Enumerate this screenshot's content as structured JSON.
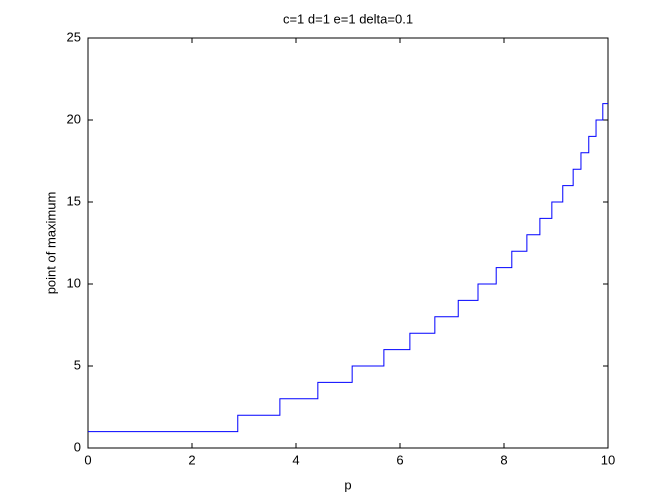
{
  "chart_data": {
    "type": "step",
    "title": "c=1 d=1 e=1 delta=0.1",
    "xlabel": "p",
    "ylabel": "point of maximum",
    "x": [
      0,
      2.88,
      3.69,
      4.42,
      5.08,
      5.69,
      6.19,
      6.67,
      7.12,
      7.5,
      7.85,
      8.15,
      8.44,
      8.69,
      8.92,
      9.13,
      9.33,
      9.48,
      9.63,
      9.77,
      9.9,
      10
    ],
    "values": [
      1,
      2,
      3,
      4,
      5,
      6,
      7,
      8,
      9,
      10,
      11,
      12,
      13,
      14,
      15,
      16,
      17,
      18,
      19,
      20,
      21,
      21
    ],
    "color": "#0000ff",
    "xlim": [
      0,
      10
    ],
    "xticks": [
      0,
      2,
      4,
      6,
      8,
      10
    ],
    "ylim": [
      0,
      25
    ],
    "yticks": [
      0,
      5,
      10,
      15,
      20,
      25
    ]
  }
}
